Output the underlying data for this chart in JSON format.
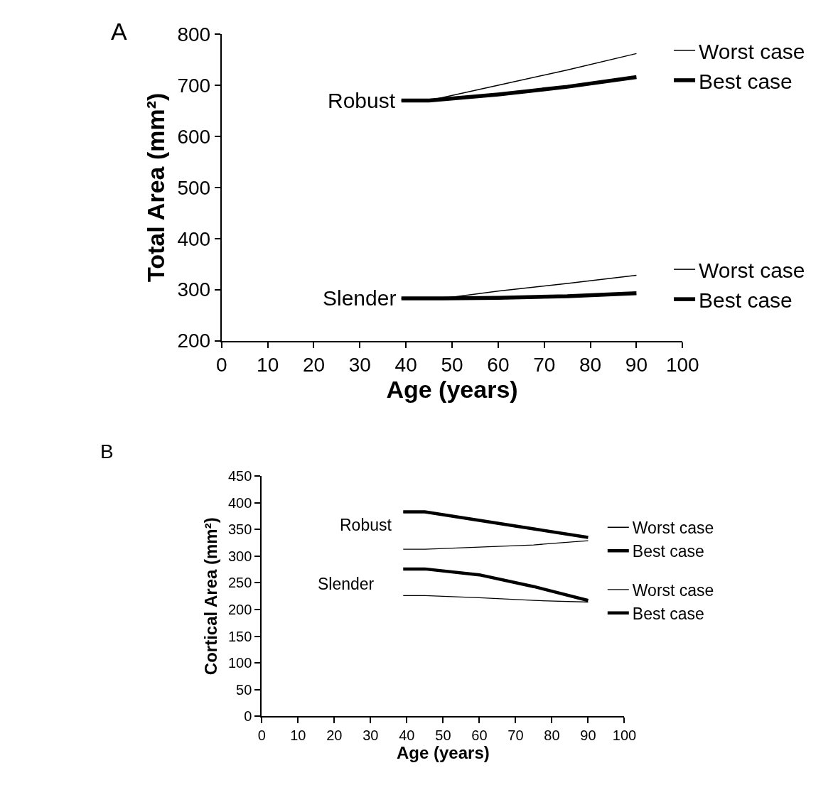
{
  "chart_data": [
    {
      "type": "line",
      "title": "A",
      "xlabel": "Age (years)",
      "ylabel": "Total Area (mm²)",
      "xlim": [
        0,
        100
      ],
      "xticks": [
        0,
        10,
        20,
        30,
        40,
        50,
        60,
        70,
        80,
        90,
        100
      ],
      "ylim": [
        200,
        800
      ],
      "yticks": [
        200,
        300,
        400,
        500,
        600,
        700,
        800
      ],
      "legend": "right",
      "marker": "none",
      "line_style": "solid",
      "annotations": [
        {
          "text": "Robust",
          "x": 39,
          "y": 670
        },
        {
          "text": "Slender",
          "x": 39,
          "y": 283
        }
      ],
      "series": [
        {
          "name": "Worst case",
          "color": "#000000",
          "x": [
            39,
            45,
            60,
            75,
            90
          ],
          "values": [
            670,
            670,
            700,
            730,
            762
          ]
        },
        {
          "name": "Best case",
          "color": "#000000",
          "x": [
            39,
            45,
            60,
            75,
            90
          ],
          "values": [
            670,
            670,
            682,
            697,
            716
          ]
        },
        {
          "name": "Worst case",
          "color": "#000000",
          "x": [
            39,
            48,
            60,
            75,
            90
          ],
          "values": [
            283,
            283,
            297,
            312,
            328
          ]
        },
        {
          "name": "Best case",
          "color": "#000000",
          "x": [
            39,
            48,
            60,
            75,
            90
          ],
          "values": [
            283,
            283,
            284,
            287,
            293
          ]
        }
      ]
    },
    {
      "type": "line",
      "title": "B",
      "xlabel": "Age (years)",
      "ylabel": "Cortical Area (mm²)",
      "xlim": [
        0,
        100
      ],
      "xticks": [
        0,
        10,
        20,
        30,
        40,
        50,
        60,
        70,
        80,
        90,
        100
      ],
      "ylim": [
        0,
        450
      ],
      "yticks": [
        0,
        50,
        100,
        150,
        200,
        250,
        300,
        350,
        400,
        450
      ],
      "legend": "right",
      "marker": "none",
      "line_style": "solid",
      "annotations": [
        "Robust",
        "Slender"
      ],
      "series": [
        {
          "name": "Worst case",
          "color": "#000000",
          "x": [
            39,
            45,
            60,
            75,
            90
          ],
          "values": [
            313,
            313,
            317,
            321,
            329
          ]
        },
        {
          "name": "Best case",
          "color": "#000000",
          "x": [
            39,
            45,
            60,
            75,
            90
          ],
          "values": [
            383,
            383,
            367,
            351,
            335
          ]
        },
        {
          "name": "Worst case",
          "color": "#000000",
          "x": [
            39,
            45,
            60,
            75,
            90
          ],
          "values": [
            226,
            226,
            222,
            217,
            214
          ]
        },
        {
          "name": "Best case",
          "color": "#000000",
          "x": [
            39,
            45,
            60,
            75,
            90
          ],
          "values": [
            276,
            276,
            265,
            243,
            217
          ]
        }
      ]
    }
  ]
}
